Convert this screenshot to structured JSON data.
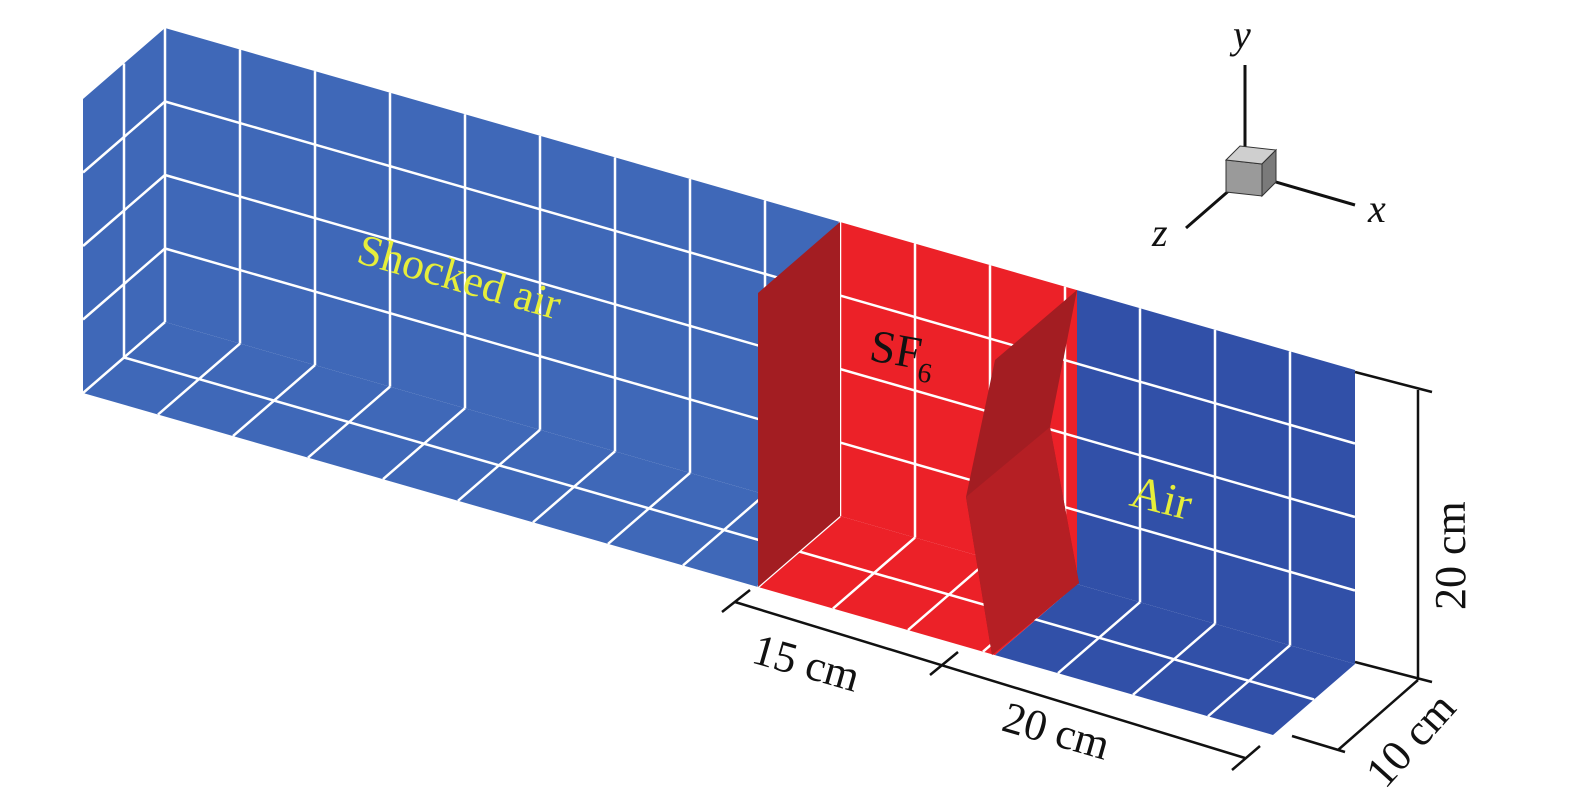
{
  "regions": {
    "shocked_air": {
      "label": "Shocked air",
      "color": "#3f68b8"
    },
    "sf6": {
      "label": "SF",
      "subscript": "6",
      "color": "#ec2128",
      "shade": "#a31d22"
    },
    "air": {
      "label": "Air",
      "color": "#3150a8"
    }
  },
  "label_color": "#e6ee3a",
  "dimensions": {
    "sf6_length": "15 cm",
    "air_length": "20 cm",
    "height": "20 cm",
    "depth": "10 cm"
  },
  "axes": {
    "x": "x",
    "y": "y",
    "z": "z"
  }
}
